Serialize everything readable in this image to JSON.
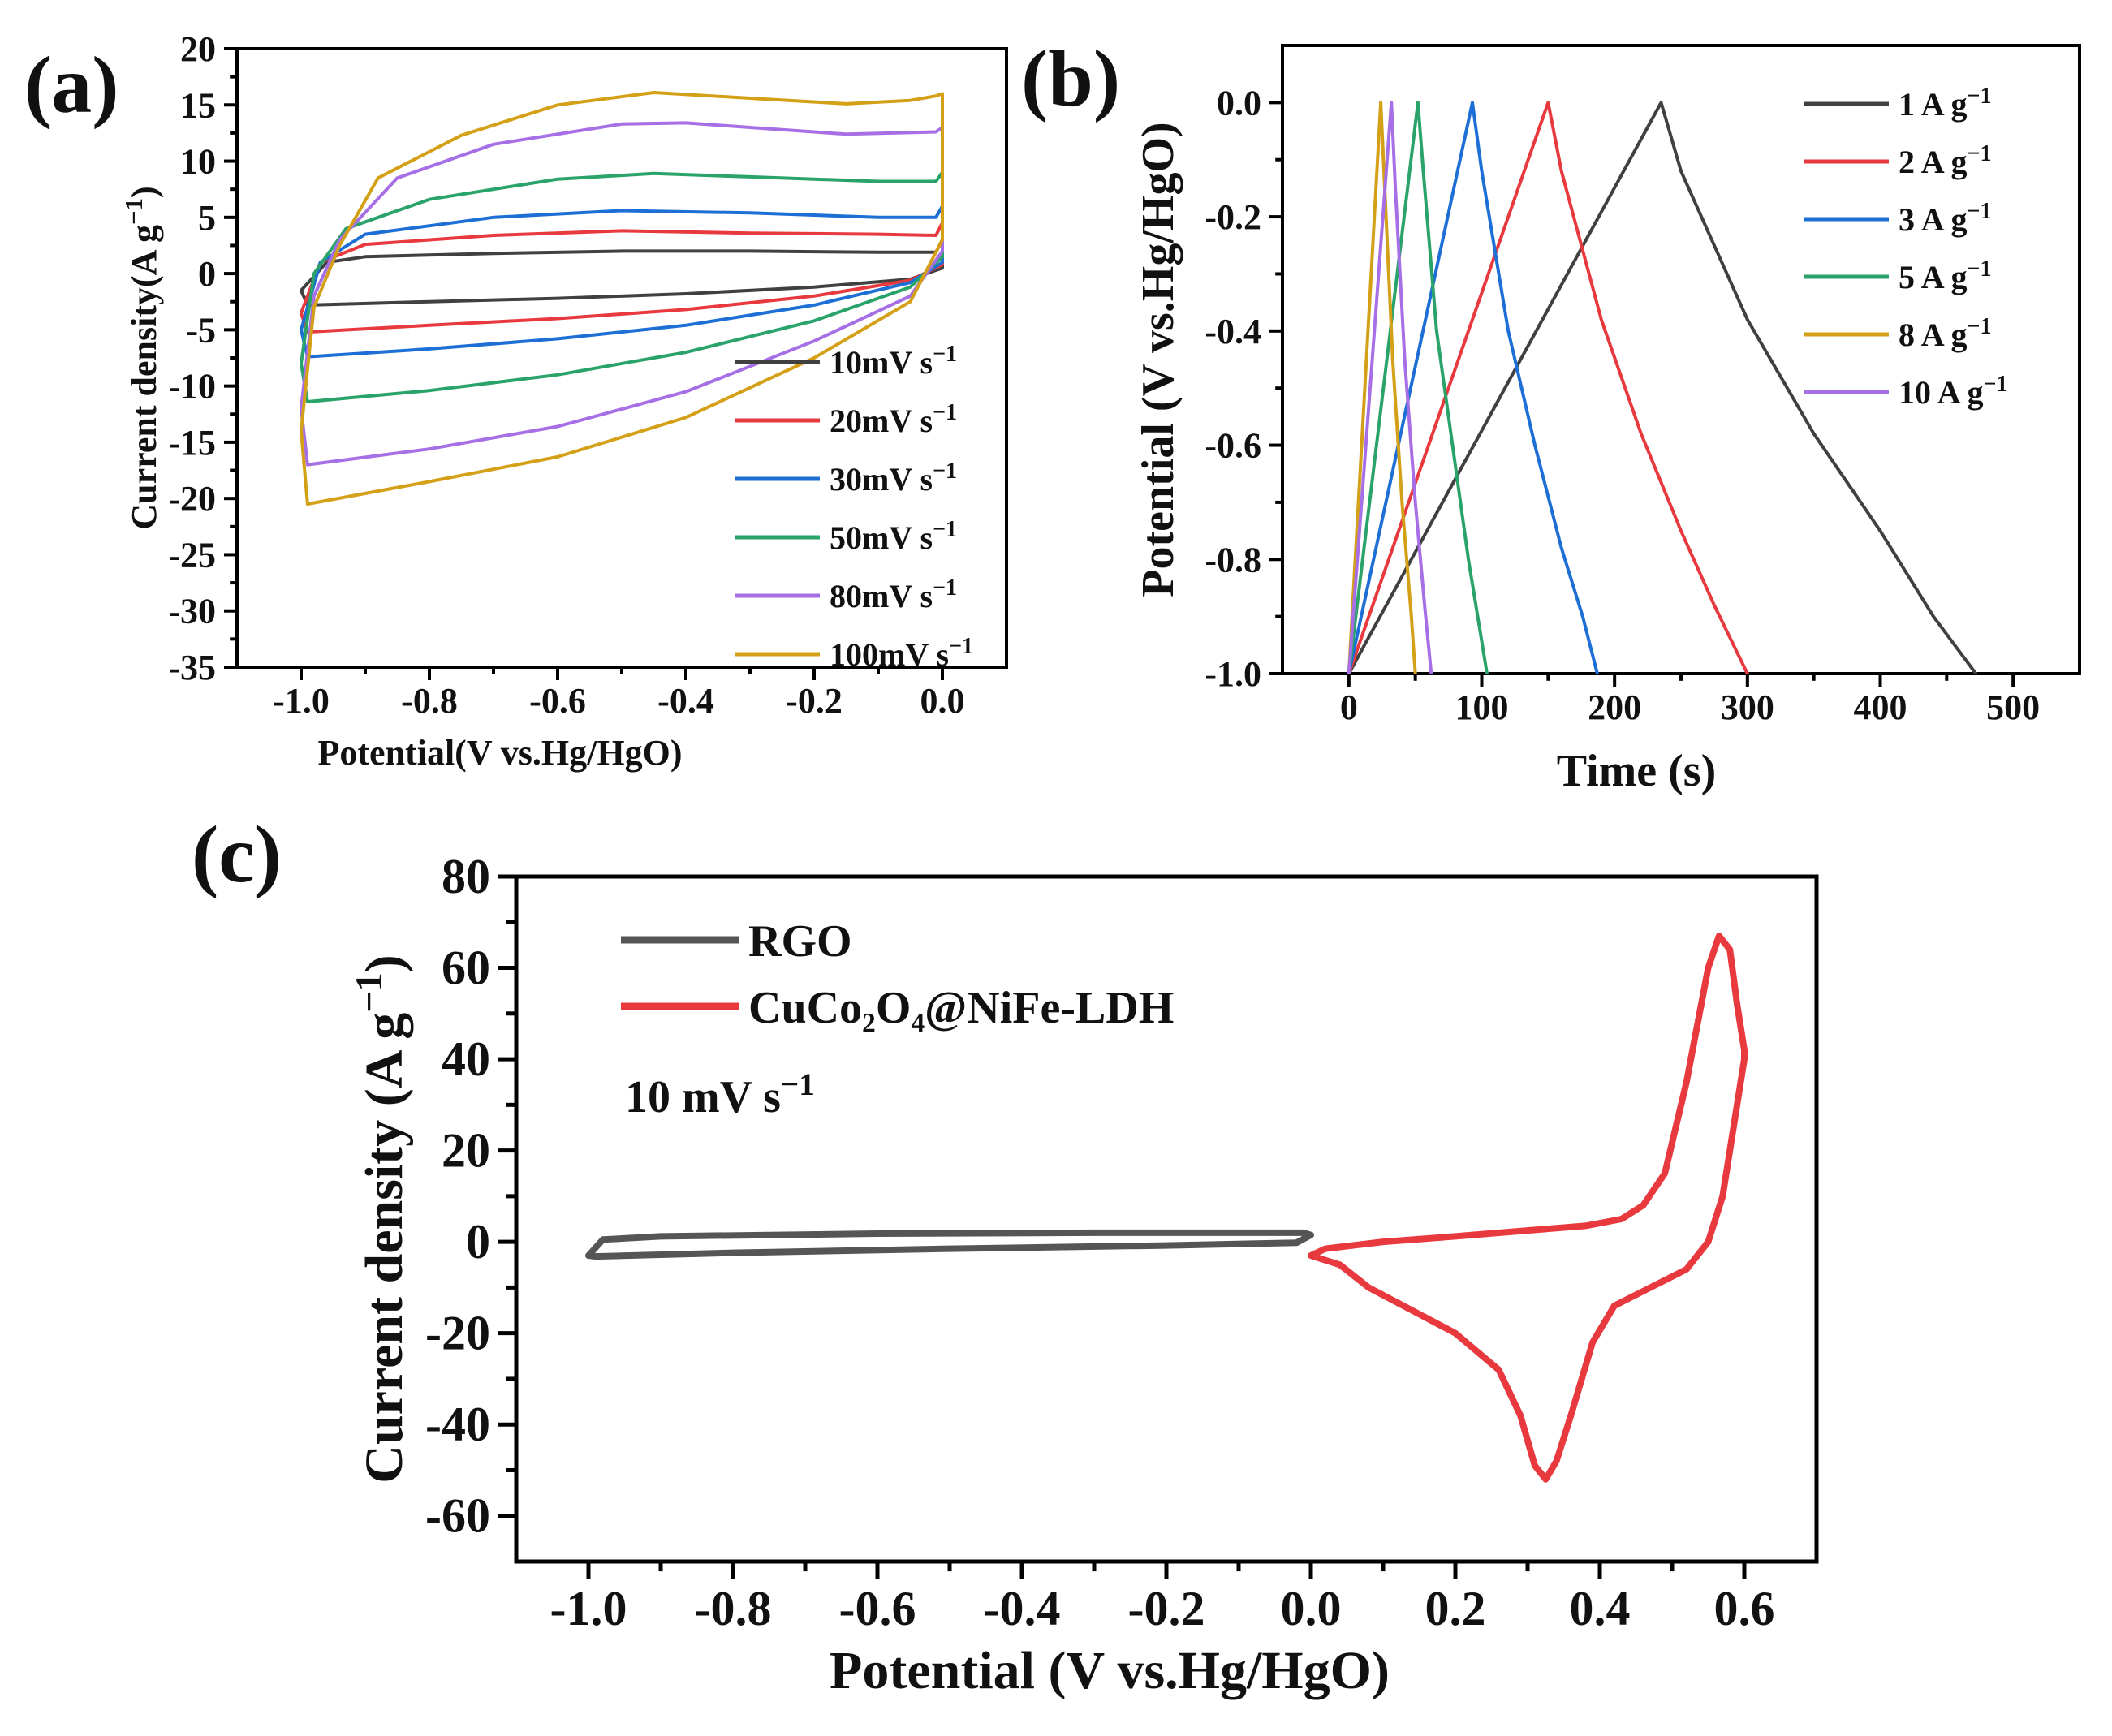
{
  "chart_data": [
    {
      "panel": "(a)",
      "type": "line",
      "title": "",
      "xlabel": "Potential(V vs.Hg/HgO)",
      "ylabel": "Current density(A g",
      "ylabel_sup": "−1",
      "ylabel_close": ")",
      "xlim": [
        -1.1,
        0.1
      ],
      "ylim": [
        -35,
        20
      ],
      "xticks": [
        -1.0,
        -0.8,
        -0.6,
        -0.4,
        -0.2,
        0.0
      ],
      "xtick_labels": [
        "-1.0",
        "-0.8",
        "-0.6",
        "-0.4",
        "-0.2",
        "0.0"
      ],
      "yticks": [
        20,
        15,
        10,
        5,
        0,
        -5,
        -10,
        -15,
        -20,
        -25,
        -30,
        -35
      ],
      "ytick_labels": [
        "20",
        "15",
        "10",
        "5",
        "0",
        "-5",
        "-10",
        "-15",
        "-20",
        "-25",
        "-30",
        "-35"
      ],
      "legend_position": "bottom-right",
      "series": [
        {
          "name": "10mV s",
          "sup": "−1",
          "color": "#404040",
          "upper": [
            [
              -1.0,
              -1.5
            ],
            [
              -0.96,
              1.0
            ],
            [
              -0.9,
              1.5
            ],
            [
              -0.7,
              1.8
            ],
            [
              -0.5,
              2.0
            ],
            [
              -0.3,
              2.0
            ],
            [
              -0.1,
              1.9
            ],
            [
              -0.01,
              1.9
            ],
            [
              0.0,
              3.0
            ]
          ],
          "lower": [
            [
              0.0,
              0.5
            ],
            [
              -0.05,
              -0.5
            ],
            [
              -0.2,
              -1.2
            ],
            [
              -0.4,
              -1.8
            ],
            [
              -0.6,
              -2.2
            ],
            [
              -0.8,
              -2.5
            ],
            [
              -0.99,
              -2.8
            ],
            [
              -1.0,
              -1.5
            ]
          ]
        },
        {
          "name": "20mV s",
          "sup": "−1",
          "color": "#e8393e",
          "upper": [
            [
              -1.0,
              -3.5
            ],
            [
              -0.97,
              1.0
            ],
            [
              -0.9,
              2.6
            ],
            [
              -0.7,
              3.4
            ],
            [
              -0.5,
              3.8
            ],
            [
              -0.3,
              3.6
            ],
            [
              -0.1,
              3.5
            ],
            [
              -0.01,
              3.4
            ],
            [
              0.0,
              4.5
            ]
          ],
          "lower": [
            [
              0.0,
              0.8
            ],
            [
              -0.05,
              -0.6
            ],
            [
              -0.2,
              -2.0
            ],
            [
              -0.4,
              -3.2
            ],
            [
              -0.6,
              -4.0
            ],
            [
              -0.8,
              -4.6
            ],
            [
              -0.99,
              -5.2
            ],
            [
              -1.0,
              -3.5
            ]
          ]
        },
        {
          "name": "30mV s",
          "sup": "−1",
          "color": "#1d6fd6",
          "upper": [
            [
              -1.0,
              -5.0
            ],
            [
              -0.97,
              1.0
            ],
            [
              -0.9,
              3.5
            ],
            [
              -0.7,
              5.0
            ],
            [
              -0.5,
              5.6
            ],
            [
              -0.3,
              5.4
            ],
            [
              -0.1,
              5.0
            ],
            [
              -0.01,
              5.0
            ],
            [
              0.0,
              6.0
            ]
          ],
          "lower": [
            [
              0.0,
              1.0
            ],
            [
              -0.05,
              -0.8
            ],
            [
              -0.2,
              -2.8
            ],
            [
              -0.4,
              -4.6
            ],
            [
              -0.6,
              -5.8
            ],
            [
              -0.8,
              -6.7
            ],
            [
              -0.99,
              -7.4
            ],
            [
              -1.0,
              -5.0
            ]
          ]
        },
        {
          "name": "50mV s",
          "sup": "−1",
          "color": "#2aa36a",
          "upper": [
            [
              -1.0,
              -8.0
            ],
            [
              -0.98,
              0.0
            ],
            [
              -0.93,
              4.0
            ],
            [
              -0.8,
              6.6
            ],
            [
              -0.6,
              8.4
            ],
            [
              -0.45,
              8.9
            ],
            [
              -0.3,
              8.6
            ],
            [
              -0.1,
              8.2
            ],
            [
              -0.01,
              8.2
            ],
            [
              0.0,
              9.0
            ]
          ],
          "lower": [
            [
              0.0,
              1.5
            ],
            [
              -0.05,
              -1.2
            ],
            [
              -0.2,
              -4.2
            ],
            [
              -0.4,
              -7.0
            ],
            [
              -0.6,
              -9.0
            ],
            [
              -0.8,
              -10.4
            ],
            [
              -0.99,
              -11.4
            ],
            [
              -1.0,
              -8.0
            ]
          ]
        },
        {
          "name": "80mV s",
          "sup": "−1",
          "color": "#a66fe6",
          "upper": [
            [
              -1.0,
              -12.0
            ],
            [
              -0.98,
              -2.0
            ],
            [
              -0.94,
              3.0
            ],
            [
              -0.85,
              8.5
            ],
            [
              -0.7,
              11.5
            ],
            [
              -0.5,
              13.3
            ],
            [
              -0.4,
              13.4
            ],
            [
              -0.3,
              13.0
            ],
            [
              -0.15,
              12.4
            ],
            [
              -0.01,
              12.6
            ],
            [
              0.0,
              13.0
            ]
          ],
          "lower": [
            [
              0.0,
              2.0
            ],
            [
              -0.05,
              -2.0
            ],
            [
              -0.2,
              -6.0
            ],
            [
              -0.4,
              -10.5
            ],
            [
              -0.6,
              -13.6
            ],
            [
              -0.8,
              -15.6
            ],
            [
              -0.99,
              -17.0
            ],
            [
              -1.0,
              -12.0
            ]
          ]
        },
        {
          "name": "100mV s",
          "sup": "−1",
          "color": "#d4a017",
          "upper": [
            [
              -1.0,
              -14.0
            ],
            [
              -0.98,
              -3.0
            ],
            [
              -0.94,
              2.5
            ],
            [
              -0.88,
              8.5
            ],
            [
              -0.75,
              12.3
            ],
            [
              -0.6,
              15.0
            ],
            [
              -0.45,
              16.1
            ],
            [
              -0.3,
              15.6
            ],
            [
              -0.15,
              15.1
            ],
            [
              -0.05,
              15.4
            ],
            [
              -0.01,
              15.8
            ],
            [
              0.0,
              16.0
            ]
          ],
          "lower": [
            [
              0.0,
              3.0
            ],
            [
              -0.05,
              -2.5
            ],
            [
              -0.2,
              -7.5
            ],
            [
              -0.4,
              -12.8
            ],
            [
              -0.6,
              -16.3
            ],
            [
              -0.8,
              -18.5
            ],
            [
              -0.99,
              -20.5
            ],
            [
              -1.0,
              -14.0
            ]
          ]
        }
      ]
    },
    {
      "panel": "(b)",
      "type": "line",
      "title": "",
      "xlabel": "Time (s)",
      "ylabel": "Potential (V vs.Hg/HgO)",
      "xlim": [
        -50,
        550
      ],
      "ylim": [
        -1.0,
        0.1
      ],
      "xticks": [
        0,
        100,
        200,
        300,
        400,
        500
      ],
      "xtick_labels": [
        "0",
        "100",
        "200",
        "300",
        "400",
        "500"
      ],
      "yticks": [
        0.0,
        -0.2,
        -0.4,
        -0.6,
        -0.8,
        -1.0
      ],
      "ytick_labels": [
        "0.0",
        "-0.2",
        "-0.4",
        "-0.6",
        "-0.8",
        "-1.0"
      ],
      "legend_position": "top-right",
      "series": [
        {
          "name": "1 A g",
          "sup": "−1",
          "color": "#404040",
          "points": [
            [
              0,
              -1.0
            ],
            [
              235,
              0.0
            ],
            [
              250,
              -0.12
            ],
            [
              300,
              -0.38
            ],
            [
              350,
              -0.58
            ],
            [
              400,
              -0.75
            ],
            [
              440,
              -0.9
            ],
            [
              472,
              -1.0
            ]
          ]
        },
        {
          "name": "2 A g",
          "sup": "−1",
          "color": "#e8393e",
          "points": [
            [
              0,
              -1.0
            ],
            [
              150,
              0.0
            ],
            [
              160,
              -0.12
            ],
            [
              190,
              -0.38
            ],
            [
              220,
              -0.58
            ],
            [
              250,
              -0.75
            ],
            [
              275,
              -0.88
            ],
            [
              300,
              -1.0
            ]
          ]
        },
        {
          "name": "3 A g",
          "sup": "−1",
          "color": "#1d6fd6",
          "points": [
            [
              0,
              -1.0
            ],
            [
              93,
              0.0
            ],
            [
              100,
              -0.12
            ],
            [
              120,
              -0.4
            ],
            [
              140,
              -0.6
            ],
            [
              160,
              -0.78
            ],
            [
              176,
              -0.9
            ],
            [
              187,
              -1.0
            ]
          ]
        },
        {
          "name": "5 A g",
          "sup": "−1",
          "color": "#2aa36a",
          "points": [
            [
              0,
              -1.0
            ],
            [
              52,
              0.0
            ],
            [
              56,
              -0.12
            ],
            [
              66,
              -0.4
            ],
            [
              78,
              -0.6
            ],
            [
              90,
              -0.8
            ],
            [
              104,
              -1.0
            ]
          ]
        },
        {
          "name": "8 A g",
          "sup": "−1",
          "color": "#d4a017",
          "points": [
            [
              0,
              -1.0
            ],
            [
              24,
              0.0
            ],
            [
              27,
              -0.15
            ],
            [
              33,
              -0.45
            ],
            [
              40,
              -0.7
            ],
            [
              47,
              -0.9
            ],
            [
              50,
              -1.0
            ]
          ]
        },
        {
          "name": "10 A g",
          "sup": "−1",
          "color": "#a66fe6",
          "points": [
            [
              0,
              -1.0
            ],
            [
              32,
              0.0
            ],
            [
              35,
              -0.15
            ],
            [
              42,
              -0.45
            ],
            [
              50,
              -0.7
            ],
            [
              57,
              -0.88
            ],
            [
              62,
              -1.0
            ]
          ]
        }
      ]
    },
    {
      "panel": "(c)",
      "type": "line",
      "title": "",
      "xlabel": "Potential (V vs.Hg/HgO)",
      "ylabel": "Current density (A g",
      "ylabel_sup": "−1",
      "ylabel_close": ")",
      "xlim": [
        -1.1,
        0.7
      ],
      "ylim": [
        -70,
        80
      ],
      "xticks": [
        -1.0,
        -0.8,
        -0.6,
        -0.4,
        -0.2,
        0.0,
        0.2,
        0.4,
        0.6
      ],
      "xtick_labels": [
        "-1.0",
        "-0.8",
        "-0.6",
        "-0.4",
        "-0.2",
        "0.0",
        "0.2",
        "0.4",
        "0.6"
      ],
      "yticks": [
        80,
        60,
        40,
        20,
        0,
        -20,
        -40,
        -60
      ],
      "ytick_labels": [
        "80",
        "60",
        "40",
        "20",
        "0",
        "-20",
        "-40",
        "-60"
      ],
      "legend_position": "top-left",
      "annotation": "10 mV s",
      "annotation_sup": "−1",
      "series": [
        {
          "name": "RGO",
          "color": "#555555",
          "points": [
            [
              -1.0,
              -3.0
            ],
            [
              -0.98,
              0.5
            ],
            [
              -0.9,
              1.2
            ],
            [
              -0.6,
              1.8
            ],
            [
              -0.3,
              2.0
            ],
            [
              -0.01,
              2.0
            ],
            [
              0.0,
              1.5
            ],
            [
              -0.02,
              -0.2
            ],
            [
              -0.2,
              -0.8
            ],
            [
              -0.5,
              -1.5
            ],
            [
              -0.8,
              -2.4
            ],
            [
              -0.99,
              -3.2
            ],
            [
              -1.0,
              -3.0
            ]
          ]
        },
        {
          "name": "CuCo₂O₄@NiFe-LDH",
          "color": "#e8393e",
          "points": [
            [
              0.0,
              -3.0
            ],
            [
              0.02,
              -1.5
            ],
            [
              0.1,
              0.0
            ],
            [
              0.2,
              1.2
            ],
            [
              0.3,
              2.5
            ],
            [
              0.38,
              3.5
            ],
            [
              0.43,
              5.0
            ],
            [
              0.46,
              8.0
            ],
            [
              0.49,
              15.0
            ],
            [
              0.52,
              35.0
            ],
            [
              0.55,
              60.0
            ],
            [
              0.565,
              67.0
            ],
            [
              0.58,
              64.0
            ],
            [
              0.59,
              52.0
            ],
            [
              0.6,
              42.0
            ],
            [
              0.6,
              40.0
            ],
            [
              0.59,
              30.0
            ],
            [
              0.57,
              10.0
            ],
            [
              0.55,
              0.0
            ],
            [
              0.52,
              -6.0
            ],
            [
              0.47,
              -10.0
            ],
            [
              0.42,
              -14.0
            ],
            [
              0.39,
              -22.0
            ],
            [
              0.36,
              -38.0
            ],
            [
              0.34,
              -48.0
            ],
            [
              0.325,
              -52.0
            ],
            [
              0.31,
              -49.0
            ],
            [
              0.29,
              -38.0
            ],
            [
              0.26,
              -28.0
            ],
            [
              0.2,
              -20.0
            ],
            [
              0.14,
              -15.0
            ],
            [
              0.08,
              -10.0
            ],
            [
              0.04,
              -5.0
            ],
            [
              0.0,
              -3.0
            ]
          ]
        }
      ]
    }
  ]
}
